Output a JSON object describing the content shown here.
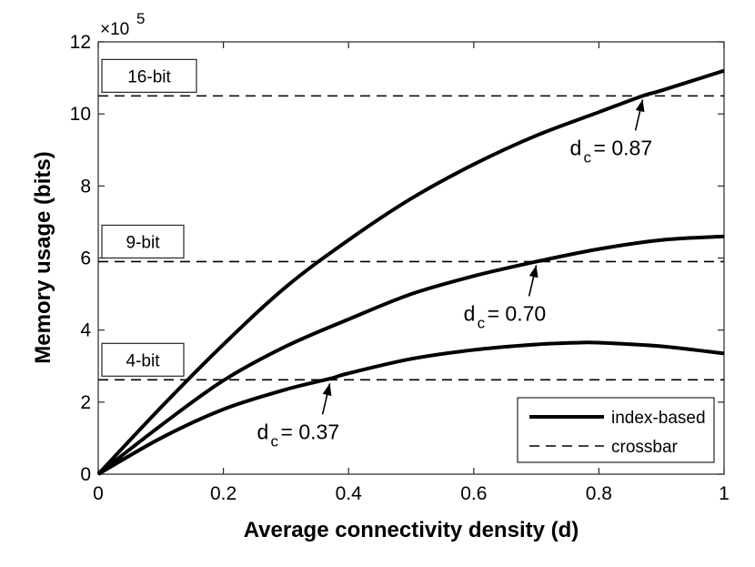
{
  "chart_data": {
    "type": "line",
    "title": "",
    "xlabel": "Average connectivity density (d)",
    "ylabel": "Memory usage (bits)",
    "xlim": [
      0,
      1
    ],
    "ylim": [
      0,
      12
    ],
    "y_scale_label": "×10",
    "y_scale_exponent": "5",
    "x_ticks": [
      0,
      0.2,
      0.4,
      0.6,
      0.8,
      1
    ],
    "x_tick_labels": [
      "0",
      "0.2",
      "0.4",
      "0.6",
      "0.8",
      "1"
    ],
    "y_ticks": [
      0,
      2,
      4,
      6,
      8,
      10,
      12
    ],
    "y_tick_labels": [
      "0",
      "2",
      "4",
      "6",
      "8",
      "10",
      "12"
    ],
    "grid": false,
    "series": [
      {
        "name": "index-based",
        "style": "solid",
        "group": "16-bit",
        "x": [
          0,
          0.1,
          0.2,
          0.3,
          0.4,
          0.5,
          0.6,
          0.7,
          0.8,
          0.87,
          0.9,
          1.0
        ],
        "values": [
          0,
          1.85,
          3.6,
          5.2,
          6.5,
          7.65,
          8.6,
          9.4,
          10.05,
          10.5,
          10.65,
          11.2
        ]
      },
      {
        "name": "crossbar",
        "style": "dashed",
        "group": "16-bit",
        "y": 10.5
      },
      {
        "name": "index-based",
        "style": "solid",
        "group": "9-bit",
        "x": [
          0,
          0.1,
          0.2,
          0.3,
          0.4,
          0.5,
          0.6,
          0.7,
          0.8,
          0.9,
          1.0
        ],
        "values": [
          0,
          1.35,
          2.6,
          3.55,
          4.3,
          5.0,
          5.5,
          5.9,
          6.25,
          6.5,
          6.6
        ]
      },
      {
        "name": "crossbar",
        "style": "dashed",
        "group": "9-bit",
        "y": 5.9
      },
      {
        "name": "index-based",
        "style": "solid",
        "group": "4-bit",
        "x": [
          0,
          0.1,
          0.2,
          0.3,
          0.37,
          0.4,
          0.5,
          0.6,
          0.7,
          0.77,
          0.8,
          0.9,
          1.0
        ],
        "values": [
          0,
          1.0,
          1.8,
          2.35,
          2.65,
          2.8,
          3.2,
          3.45,
          3.6,
          3.65,
          3.65,
          3.55,
          3.35
        ]
      },
      {
        "name": "crossbar",
        "style": "dashed",
        "group": "4-bit",
        "y": 2.62
      }
    ],
    "bit_boxes": [
      {
        "label": "16-bit",
        "level": 10.5
      },
      {
        "label": "9-bit",
        "level": 5.9
      },
      {
        "label": "4-bit",
        "level": 2.62
      }
    ],
    "annotations": [
      {
        "prefix": "d",
        "subscript": "c",
        "text": "= 0.87",
        "x": 0.87,
        "y": 10.5
      },
      {
        "prefix": "d",
        "subscript": "c",
        "text": "= 0.70",
        "x": 0.7,
        "y": 5.9
      },
      {
        "prefix": "d",
        "subscript": "c",
        "text": "= 0.37",
        "x": 0.37,
        "y": 2.62
      }
    ],
    "legend": {
      "position": "bottom-right",
      "entries": [
        {
          "label": "index-based",
          "style": "solid"
        },
        {
          "label": "crossbar",
          "style": "dashed"
        }
      ]
    }
  }
}
